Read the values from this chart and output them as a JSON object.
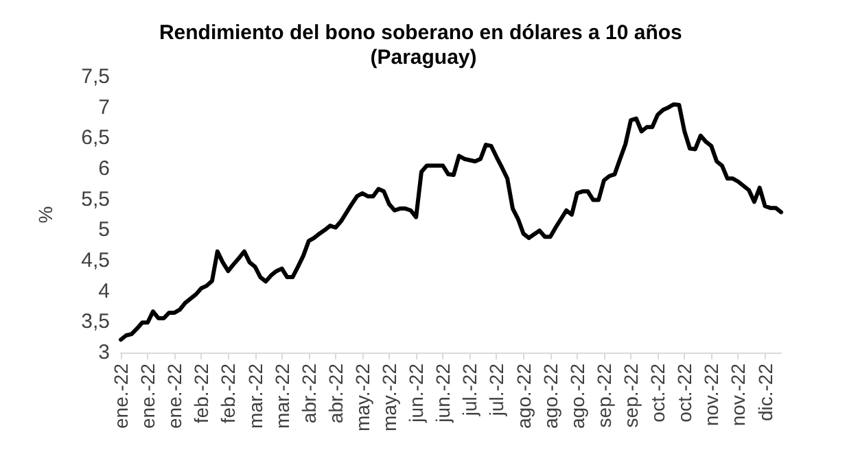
{
  "chart_data": {
    "type": "line",
    "title": "Rendimiento del bono soberano en dólares a 10 años (Paraguay)",
    "ylabel": "%",
    "categories": [
      "ene.-22",
      null,
      null,
      null,
      null,
      "ene.-22",
      null,
      null,
      null,
      null,
      "ene.-22",
      null,
      null,
      null,
      null,
      "feb.-22",
      null,
      null,
      null,
      null,
      "feb.-22",
      null,
      null,
      null,
      null,
      "mar.-22",
      null,
      null,
      null,
      null,
      "mar.-22",
      null,
      null,
      null,
      null,
      "abr.-22",
      null,
      null,
      null,
      null,
      "abr.-22",
      null,
      null,
      null,
      null,
      "may.-22",
      null,
      null,
      null,
      null,
      "may.-22",
      null,
      null,
      null,
      null,
      "jun.-22",
      null,
      null,
      null,
      null,
      "jun.-22",
      null,
      null,
      null,
      null,
      "jul.-22",
      null,
      null,
      null,
      null,
      "jul.-22",
      null,
      null,
      null,
      null,
      "ago.-22",
      null,
      null,
      null,
      null,
      "ago.-22",
      null,
      null,
      null,
      null,
      "ago.-22",
      null,
      null,
      null,
      null,
      "sep.-22",
      null,
      null,
      null,
      null,
      "sep.-22",
      null,
      null,
      null,
      null,
      "oct.-22",
      null,
      null,
      null,
      null,
      "oct.-22",
      null,
      null,
      null,
      null,
      "nov.-22",
      null,
      null,
      null,
      null,
      "nov.-22",
      null,
      null,
      null,
      null,
      "dic.-22",
      null,
      null,
      null
    ],
    "series": [
      {
        "color": "#000000",
        "values": [
          3.21,
          3.28,
          3.3,
          3.39,
          3.49,
          3.49,
          3.67,
          3.56,
          3.56,
          3.65,
          3.65,
          3.7,
          3.81,
          3.88,
          3.95,
          4.05,
          4.09,
          4.17,
          4.65,
          4.47,
          4.33,
          4.44,
          4.54,
          4.65,
          4.47,
          4.4,
          4.23,
          4.16,
          4.26,
          4.33,
          4.37,
          4.23,
          4.23,
          4.4,
          4.58,
          4.82,
          4.87,
          4.94,
          5.0,
          5.07,
          5.04,
          5.14,
          5.28,
          5.42,
          5.55,
          5.6,
          5.55,
          5.55,
          5.67,
          5.63,
          5.42,
          5.32,
          5.35,
          5.35,
          5.32,
          5.21,
          5.95,
          6.05,
          6.05,
          6.05,
          6.05,
          5.91,
          5.9,
          6.21,
          6.16,
          6.14,
          6.12,
          6.16,
          6.39,
          6.37,
          6.19,
          6.02,
          5.84,
          5.35,
          5.18,
          4.94,
          4.87,
          4.93,
          4.99,
          4.89,
          4.89,
          5.04,
          5.18,
          5.32,
          5.25,
          5.6,
          5.63,
          5.63,
          5.49,
          5.49,
          5.81,
          5.88,
          5.91,
          6.16,
          6.4,
          6.79,
          6.82,
          6.61,
          6.68,
          6.68,
          6.88,
          6.96,
          7.0,
          7.05,
          7.04,
          6.61,
          6.33,
          6.32,
          6.54,
          6.44,
          6.37,
          6.12,
          6.05,
          5.84,
          5.84,
          5.79,
          5.72,
          5.65,
          5.46,
          5.69,
          5.39,
          5.36,
          5.36,
          5.29
        ]
      }
    ],
    "ylim": [
      3,
      7.5
    ],
    "yticks": [
      3,
      {
        "value": 3.5,
        "label": "3,5"
      },
      4,
      {
        "value": 4.5,
        "label": "4,5"
      },
      5,
      {
        "value": 5.5,
        "label": "5,5"
      },
      6,
      {
        "value": 6.5,
        "label": "6,5"
      },
      7,
      {
        "value": 7.5,
        "label": "7,5"
      }
    ],
    "grid": false,
    "marker": "none",
    "line_style": "solid"
  }
}
